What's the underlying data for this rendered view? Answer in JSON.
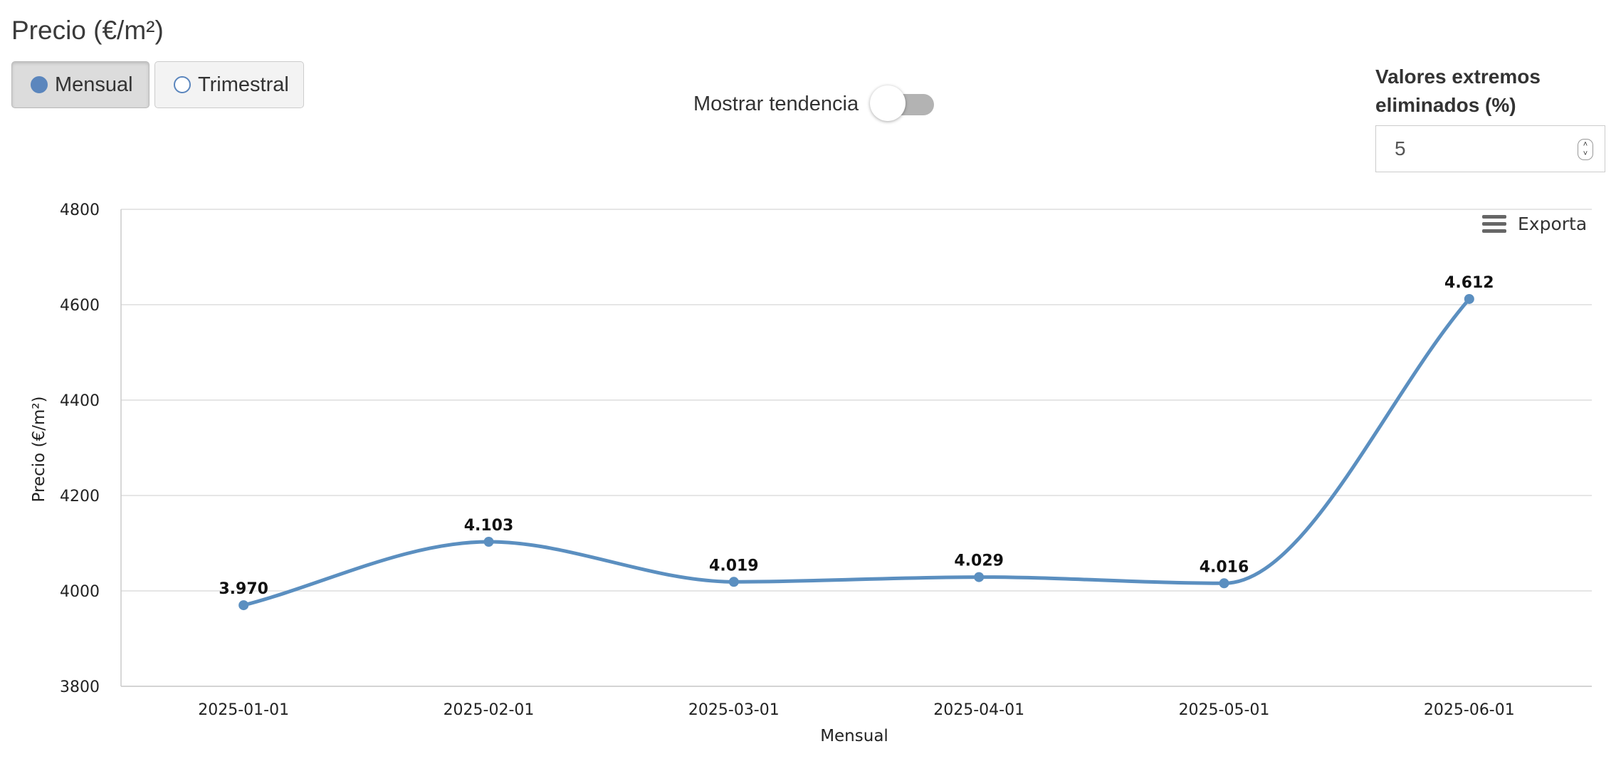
{
  "title": "Precio (€/m²)",
  "frequency": {
    "options": [
      "Mensual",
      "Trimestral"
    ],
    "selected": "Mensual"
  },
  "trend_toggle": {
    "label": "Mostrar tendencia",
    "on": false
  },
  "extremes": {
    "label": "Valores extremos eliminados (%)",
    "value": "5"
  },
  "export_label": "Exporta",
  "colors": {
    "series": "#5b8fc0",
    "accent": "#5b86bd",
    "grid": "#dddddd"
  },
  "chart_data": {
    "type": "line",
    "x": [
      "2025-01-01",
      "2025-02-01",
      "2025-03-01",
      "2025-04-01",
      "2025-05-01",
      "2025-06-01"
    ],
    "series": [
      {
        "values": [
          3970,
          4103,
          4019,
          4029,
          4016,
          4612
        ],
        "data_labels": [
          "3.970",
          "4.103",
          "4.019",
          "4.029",
          "4.016",
          "4.612"
        ]
      }
    ],
    "ylim": [
      3800,
      4800
    ],
    "yticks": [
      "3800",
      "4000",
      "4200",
      "4400",
      "4600",
      "4800"
    ],
    "xlabel": "Mensual",
    "ylabel": "Precio (€/m²)",
    "grid": true,
    "smooth": true
  }
}
